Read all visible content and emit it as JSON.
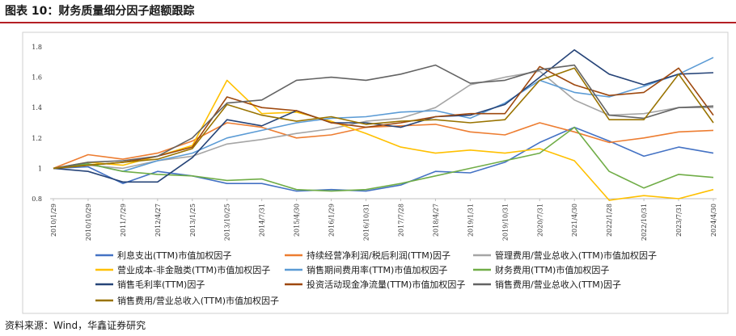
{
  "header": {
    "title": "图表 10：财务质量细分因子超额跟踪"
  },
  "footer": {
    "source": "资料来源：Wind，华鑫证券研究"
  },
  "chart_data": {
    "type": "line",
    "title": "图表 10：财务质量细分因子超额跟踪",
    "xlabel": "",
    "ylabel": "",
    "ylim": [
      0.8,
      1.8
    ],
    "yticks": [
      "0.8",
      "1",
      "1.2",
      "1.4",
      "1.6",
      "1.8"
    ],
    "grid": false,
    "legend_position": "bottom",
    "x": [
      "2010/1/29",
      "2010/10/29",
      "2011/7/29",
      "2012/4/27",
      "2013/1/25",
      "2013/10/25",
      "2014/7/31",
      "2015/4/30",
      "2016/1/29",
      "2016/10/31",
      "2017/7/28",
      "2018/4/27",
      "2019/1/31",
      "2019/10/31",
      "2020/7/31",
      "2021/4/30",
      "2022/1/28",
      "2022/10/31",
      "2023/7/31",
      "2024/4/30"
    ],
    "series": [
      {
        "name": "利息支出(TTM)市值加权因子",
        "color": "#4472c4",
        "values": [
          1.0,
          1.01,
          0.9,
          0.98,
          0.95,
          0.9,
          0.9,
          0.85,
          0.86,
          0.85,
          0.89,
          0.98,
          0.97,
          1.04,
          1.17,
          1.27,
          1.18,
          1.08,
          1.14,
          1.1
        ]
      },
      {
        "name": "持续经营净利润/税后利润(TTM)因子",
        "color": "#ed7d31",
        "values": [
          1.0,
          1.09,
          1.06,
          1.1,
          1.18,
          1.3,
          1.27,
          1.2,
          1.22,
          1.27,
          1.28,
          1.29,
          1.24,
          1.22,
          1.3,
          1.24,
          1.17,
          1.2,
          1.24,
          1.25
        ]
      },
      {
        "name": "管理费用/营业总收入(TTM)市值加权因子",
        "color": "#a5a5a5",
        "values": [
          1.0,
          1.02,
          1.0,
          1.05,
          1.08,
          1.16,
          1.19,
          1.23,
          1.26,
          1.31,
          1.33,
          1.4,
          1.55,
          1.6,
          1.64,
          1.45,
          1.35,
          1.36,
          1.4,
          1.4
        ]
      },
      {
        "name": "营业成本-非金融类(TTM)市值加权因子",
        "color": "#ffc000",
        "values": [
          1.0,
          1.04,
          1.02,
          1.08,
          1.15,
          1.58,
          1.36,
          1.37,
          1.31,
          1.23,
          1.14,
          1.1,
          1.12,
          1.1,
          1.13,
          1.05,
          0.79,
          0.82,
          0.8,
          0.86
        ]
      },
      {
        "name": "销售期间费用率(TTM)市值加权因子",
        "color": "#5b9bd5",
        "values": [
          1.0,
          1.03,
          0.98,
          1.05,
          1.1,
          1.2,
          1.25,
          1.3,
          1.33,
          1.34,
          1.37,
          1.38,
          1.33,
          1.43,
          1.58,
          1.5,
          1.47,
          1.54,
          1.62,
          1.73
        ]
      },
      {
        "name": "财务费用(TTM)市值加权因子",
        "color": "#70ad47",
        "values": [
          1.0,
          1.03,
          0.98,
          0.96,
          0.95,
          0.92,
          0.93,
          0.86,
          0.85,
          0.86,
          0.9,
          0.95,
          1.0,
          1.05,
          1.1,
          1.27,
          0.98,
          0.87,
          0.96,
          0.94
        ]
      },
      {
        "name": "销售毛利率(TTM)因子",
        "color": "#264478",
        "values": [
          1.0,
          0.98,
          0.91,
          0.91,
          1.07,
          1.32,
          1.28,
          1.38,
          1.3,
          1.3,
          1.27,
          1.34,
          1.35,
          1.42,
          1.6,
          1.78,
          1.62,
          1.55,
          1.62,
          1.63
        ]
      },
      {
        "name": "投资活动现金净流量(TTM)市值加权因子",
        "color": "#9e480e",
        "values": [
          1.0,
          1.02,
          1.04,
          1.08,
          1.14,
          1.47,
          1.4,
          1.38,
          1.3,
          1.27,
          1.3,
          1.34,
          1.36,
          1.36,
          1.67,
          1.55,
          1.48,
          1.5,
          1.66,
          1.35
        ]
      },
      {
        "name": "销售费用/营业总收入(TTM)因子",
        "color": "#636363",
        "values": [
          1.0,
          1.04,
          1.05,
          1.08,
          1.2,
          1.43,
          1.45,
          1.58,
          1.6,
          1.58,
          1.62,
          1.68,
          1.56,
          1.58,
          1.65,
          1.68,
          1.35,
          1.33,
          1.4,
          1.41
        ]
      },
      {
        "name": "销售费用/营业总收入(TTM)市值加权因子",
        "color": "#997300",
        "values": [
          1.0,
          1.02,
          1.04,
          1.06,
          1.13,
          1.42,
          1.35,
          1.31,
          1.34,
          1.29,
          1.31,
          1.32,
          1.3,
          1.32,
          1.58,
          1.66,
          1.32,
          1.32,
          1.62,
          1.3
        ]
      }
    ]
  }
}
